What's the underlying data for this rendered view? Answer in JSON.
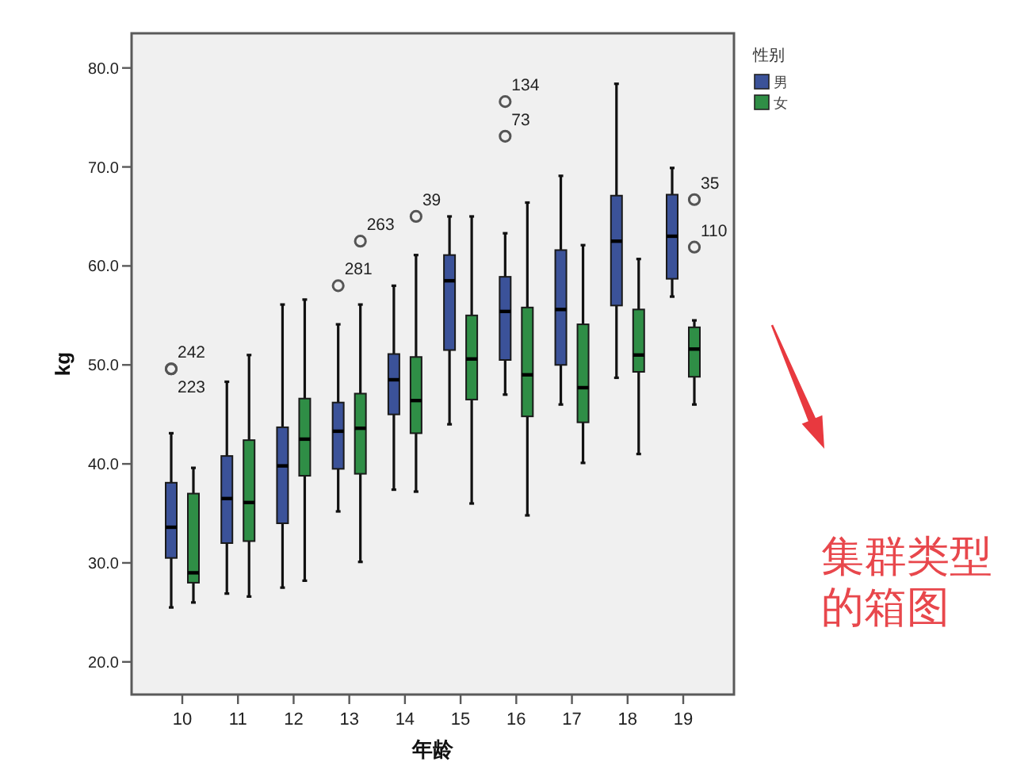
{
  "chart_data": {
    "type": "box",
    "xlabel": "年龄",
    "ylabel": "kg",
    "legend_title": "性别",
    "legend": "top right",
    "categories": [
      "10",
      "11",
      "12",
      "13",
      "14",
      "15",
      "16",
      "17",
      "18",
      "19"
    ],
    "ylim": [
      16.7,
      83.5
    ],
    "yticks": [
      {
        "value": 20,
        "label": "20.0"
      },
      {
        "value": 30,
        "label": "30.0"
      },
      {
        "value": 40,
        "label": "40.0"
      },
      {
        "value": 50,
        "label": "50.0"
      },
      {
        "value": 60,
        "label": "60.0"
      },
      {
        "value": 70,
        "label": "70.0"
      },
      {
        "value": 80,
        "label": "80.0"
      }
    ],
    "series": [
      {
        "name": "男",
        "color": "#3b5299",
        "boxes": [
          {
            "low": 25.5,
            "q1": 30.5,
            "median": 33.6,
            "q3": 38.1,
            "high": 43.1,
            "outliers": [
              49.6,
              49.6
            ]
          },
          {
            "low": 26.9,
            "q1": 32.0,
            "median": 36.5,
            "q3": 40.8,
            "high": 48.3
          },
          {
            "low": 27.5,
            "q1": 34.0,
            "median": 39.8,
            "q3": 43.7,
            "high": 56.1
          },
          {
            "low": 35.2,
            "q1": 39.5,
            "median": 43.3,
            "q3": 46.2,
            "high": 54.1,
            "outliers": [
              58.0
            ]
          },
          {
            "low": 37.4,
            "q1": 45.0,
            "median": 48.5,
            "q3": 51.1,
            "high": 58.0
          },
          {
            "low": 44.0,
            "q1": 51.5,
            "median": 58.5,
            "q3": 61.1,
            "high": 65.0
          },
          {
            "low": 47.0,
            "q1": 50.5,
            "median": 55.4,
            "q3": 58.9,
            "high": 63.3,
            "outliers": [
              76.6,
              73.1
            ]
          },
          {
            "low": 46.0,
            "q1": 50.0,
            "median": 55.6,
            "q3": 61.6,
            "high": 69.1
          },
          {
            "low": 48.7,
            "q1": 56.0,
            "median": 62.5,
            "q3": 67.1,
            "high": 78.4
          },
          {
            "low": 56.9,
            "q1": 58.7,
            "median": 63.0,
            "q3": 67.2,
            "high": 69.9
          }
        ]
      },
      {
        "name": "女",
        "color": "#2f8e46",
        "boxes": [
          {
            "low": 26.0,
            "q1": 28.0,
            "median": 29.0,
            "q3": 37.0,
            "high": 39.6
          },
          {
            "low": 26.6,
            "q1": 32.2,
            "median": 36.1,
            "q3": 42.4,
            "high": 51.0
          },
          {
            "low": 28.2,
            "q1": 38.8,
            "median": 42.5,
            "q3": 46.6,
            "high": 56.6
          },
          {
            "low": 30.1,
            "q1": 39.0,
            "median": 43.6,
            "q3": 47.1,
            "high": 56.1,
            "outliers": [
              62.5
            ]
          },
          {
            "low": 37.2,
            "q1": 43.1,
            "median": 46.4,
            "q3": 50.8,
            "high": 61.1,
            "outliers": [
              65.0
            ]
          },
          {
            "low": 36.0,
            "q1": 46.5,
            "median": 50.6,
            "q3": 55.0,
            "high": 65.0
          },
          {
            "low": 34.8,
            "q1": 44.8,
            "median": 49.0,
            "q3": 55.8,
            "high": 66.4
          },
          {
            "low": 40.1,
            "q1": 44.2,
            "median": 47.7,
            "q3": 54.1,
            "high": 62.1
          },
          {
            "low": 41.0,
            "q1": 49.3,
            "median": 51.0,
            "q3": 55.6,
            "high": 60.7
          },
          {
            "low": 46.0,
            "q1": 48.8,
            "median": 51.6,
            "q3": 53.8,
            "high": 54.5,
            "outliers": [
              66.7,
              61.9
            ]
          }
        ]
      }
    ],
    "annotations": [
      "242",
      "223",
      "281",
      "134",
      "73",
      "263",
      "39",
      "35",
      "110",
      "集群类型的箱图"
    ]
  }
}
